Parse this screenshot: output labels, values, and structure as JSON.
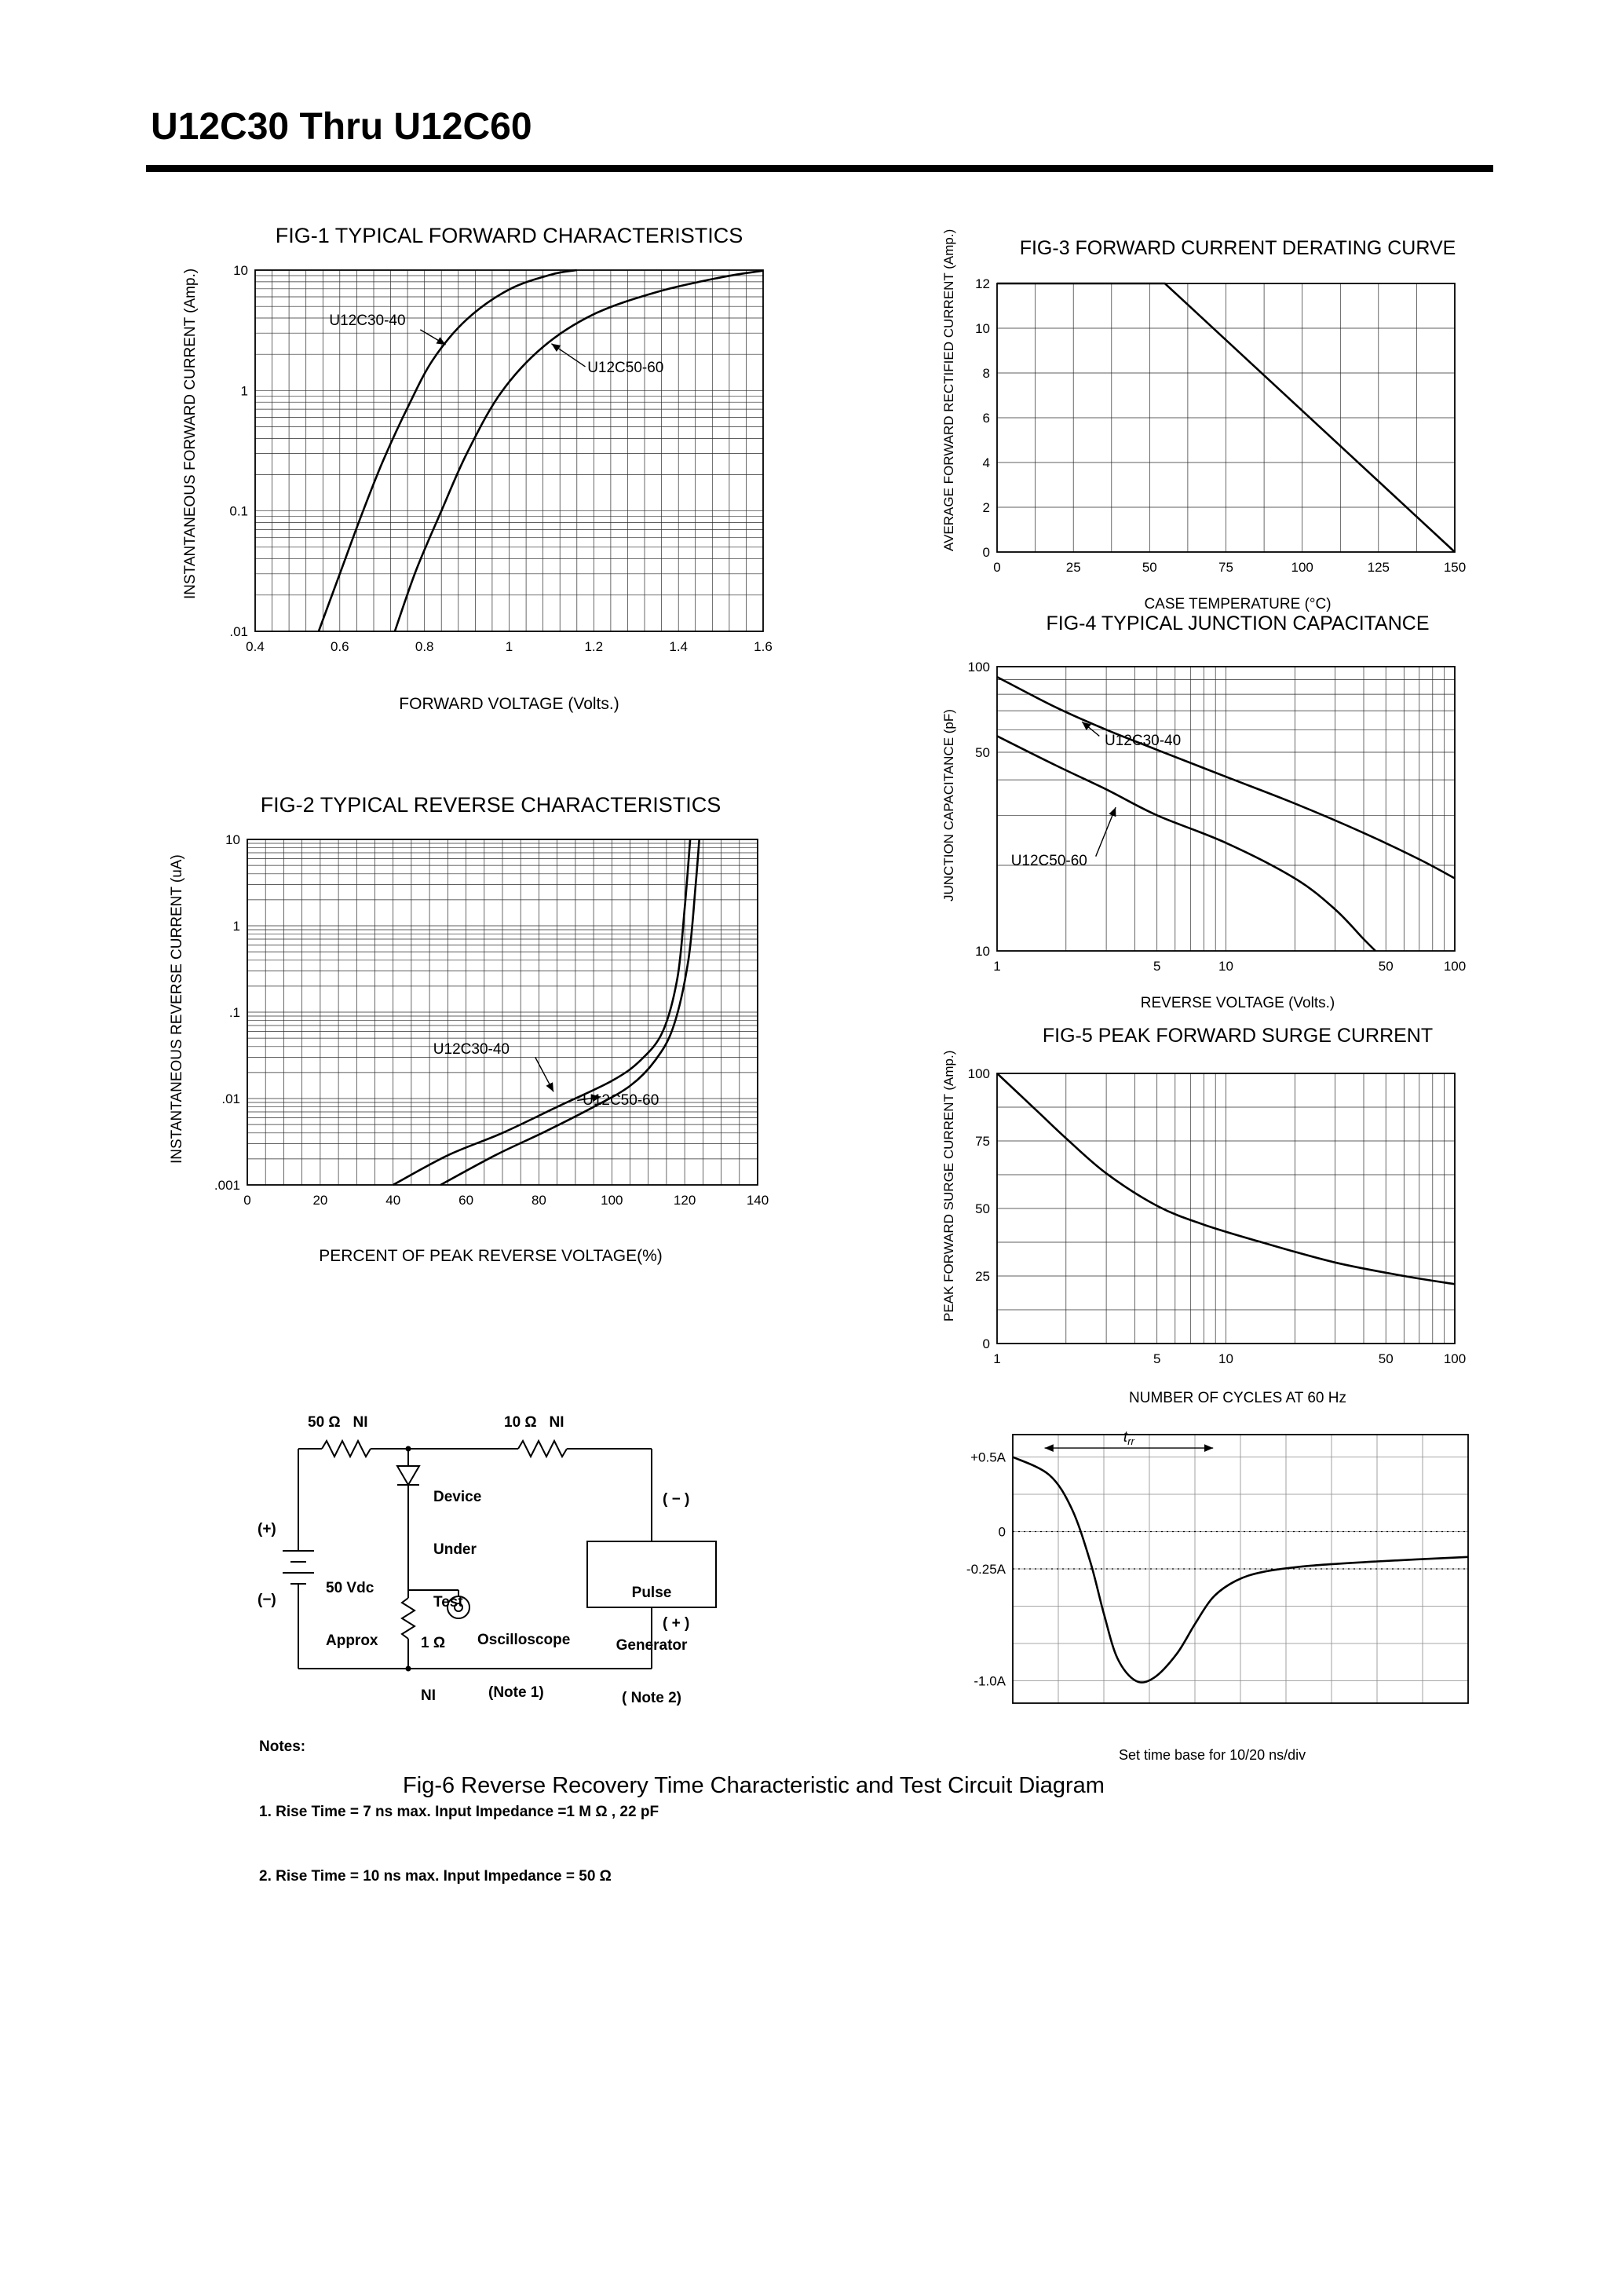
{
  "page": {
    "title": "U12C30 Thru U12C60"
  },
  "fig6": {
    "caption": "Fig-6 Reverse Recovery Time Characteristic and Test Circuit Diagram",
    "timebase": "Set time base for 10/20  ns/div",
    "notes": [
      "Notes:",
      "1. Rise Time = 7 ns max. Input Impedance =1 M Ω , 22 pF",
      "2. Rise Time = 10 ns max. Input Impedance = 50 Ω"
    ],
    "circuit": {
      "r_top_left": "50 Ω   NI",
      "r_top_right": "10 Ω   NI",
      "dut": [
        "Device",
        "Under",
        "Test"
      ],
      "battery_plus": "(+)",
      "battery_minus": "(−)",
      "battery_label": [
        "50 Vdc",
        "Approx"
      ],
      "r_sense": [
        "1 Ω",
        "NI"
      ],
      "scope": [
        "Oscilloscope",
        "(Note 1)"
      ],
      "pulse_gen": [
        "Pulse",
        "Generator",
        "( Note 2)"
      ],
      "pg_minus": "( − )",
      "pg_plus": "( + )"
    }
  },
  "chart_data": [
    {
      "id": "fig1",
      "type": "line",
      "title": "FIG-1 TYPICAL FORWARD CHARACTERISTICS",
      "xlabel": "FORWARD VOLTAGE (Volts.)",
      "ylabel": "INSTANTANEOUS FORWARD CURRENT (Amp.)",
      "m": {
        "l": 75,
        "t": 14,
        "r": 18,
        "b": 46
      },
      "x": {
        "type": "linear",
        "min": 0.4,
        "max": 1.6,
        "step": 0.04,
        "ticks": [
          [
            0.4,
            "0.4"
          ],
          [
            0.6,
            "0.6"
          ],
          [
            0.8,
            "0.8"
          ],
          [
            1,
            "1"
          ],
          [
            1.2,
            "1.2"
          ],
          [
            1.4,
            "1.4"
          ],
          [
            1.6,
            "1.6"
          ]
        ]
      },
      "y": {
        "type": "log",
        "min": 0.01,
        "max": 10,
        "ticks": [
          [
            10,
            "10"
          ],
          [
            1,
            "1"
          ],
          [
            0.1,
            "0.1"
          ],
          [
            0.01,
            ".01"
          ]
        ]
      },
      "series": [
        {
          "name": "U12C30-40",
          "points": [
            [
              0.55,
              0.01
            ],
            [
              0.6,
              0.03
            ],
            [
              0.65,
              0.09
            ],
            [
              0.7,
              0.25
            ],
            [
              0.76,
              0.72
            ],
            [
              0.82,
              1.8
            ],
            [
              0.9,
              3.9
            ],
            [
              1.0,
              6.9
            ],
            [
              1.1,
              9.2
            ],
            [
              1.16,
              10
            ]
          ]
        },
        {
          "name": "U12C50-60",
          "points": [
            [
              0.73,
              0.01
            ],
            [
              0.78,
              0.032
            ],
            [
              0.84,
              0.1
            ],
            [
              0.9,
              0.3
            ],
            [
              0.98,
              0.95
            ],
            [
              1.08,
              2.3
            ],
            [
              1.2,
              4.3
            ],
            [
              1.35,
              6.6
            ],
            [
              1.5,
              8.7
            ],
            [
              1.6,
              9.9
            ]
          ]
        }
      ],
      "annotations": [
        {
          "label": "U12C30-40",
          "text_at": [
            0.575,
            3.5
          ],
          "anchor": "start",
          "line": [
            [
              0.79,
              3.2
            ],
            [
              0.85,
              2.4
            ]
          ]
        },
        {
          "label": "U12C50-60",
          "text_at": [
            1.185,
            1.42
          ],
          "anchor": "start",
          "line": [
            [
              1.18,
              1.58
            ],
            [
              1.1,
              2.45
            ]
          ]
        }
      ]
    },
    {
      "id": "fig2",
      "type": "line",
      "title": "FIG-2 TYPICAL REVERSE CHARACTERISTICS",
      "xlabel": "PERCENT OF PEAK REVERSE VOLTAGE(%)",
      "ylabel": "INSTANTANEOUS REVERSE CURRENT (uA)",
      "m": {
        "l": 80,
        "t": 14,
        "r": 30,
        "b": 46
      },
      "x": {
        "type": "linear",
        "min": 0,
        "max": 140,
        "step": 5,
        "ticks": [
          [
            0,
            "0"
          ],
          [
            20,
            "20"
          ],
          [
            40,
            "40"
          ],
          [
            60,
            "60"
          ],
          [
            80,
            "80"
          ],
          [
            100,
            "100"
          ],
          [
            120,
            "120"
          ],
          [
            140,
            "140"
          ]
        ]
      },
      "y": {
        "type": "log",
        "min": 0.001,
        "max": 10,
        "ticks": [
          [
            10,
            "10"
          ],
          [
            1,
            "1"
          ],
          [
            0.1,
            ".1"
          ],
          [
            0.01,
            ".01"
          ],
          [
            0.001,
            ".001"
          ]
        ]
      },
      "series": [
        {
          "name": "U12C30-40",
          "points": [
            [
              40,
              0.001
            ],
            [
              55,
              0.0022
            ],
            [
              70,
              0.004
            ],
            [
              85,
              0.008
            ],
            [
              100,
              0.016
            ],
            [
              108,
              0.028
            ],
            [
              114,
              0.06
            ],
            [
              118,
              0.25
            ],
            [
              120,
              1.6
            ],
            [
              121.5,
              10
            ]
          ]
        },
        {
          "name": "U12C50-60",
          "points": [
            [
              53,
              0.001
            ],
            [
              68,
              0.0022
            ],
            [
              82,
              0.0042
            ],
            [
              95,
              0.008
            ],
            [
              105,
              0.014
            ],
            [
              112,
              0.028
            ],
            [
              117,
              0.07
            ],
            [
              121,
              0.4
            ],
            [
              123,
              3
            ],
            [
              124,
              10
            ]
          ]
        }
      ],
      "annotations": [
        {
          "label": "U12C30-40",
          "text_at": [
            51,
            0.033
          ],
          "anchor": "start",
          "line": [
            [
              79,
              0.03
            ],
            [
              84,
              0.012
            ]
          ]
        },
        {
          "label": "U12C50-60",
          "text_at": [
            92,
            0.0085
          ],
          "anchor": "start",
          "line": [
            [
              90.5,
              0.0095
            ],
            [
              97,
              0.0105
            ]
          ]
        }
      ]
    },
    {
      "id": "fig3",
      "type": "line",
      "title": "FIG-3 FORWARD CURRENT DERATING CURVE",
      "xlabel": "CASE TEMPERATURE (°C)",
      "ylabel": "AVERAGE FORWARD RECTIFIED CURRENT (Amp.)",
      "m": {
        "l": 55,
        "t": 14,
        "r": 22,
        "b": 44
      },
      "smooth": false,
      "x": {
        "type": "linear",
        "min": 0,
        "max": 150,
        "step": 12.5,
        "ticks": [
          [
            0,
            "0"
          ],
          [
            25,
            "25"
          ],
          [
            50,
            "50"
          ],
          [
            75,
            "75"
          ],
          [
            100,
            "100"
          ],
          [
            125,
            "125"
          ],
          [
            150,
            "150"
          ]
        ]
      },
      "y": {
        "type": "linear",
        "min": 0,
        "max": 12,
        "step": 2,
        "ticks": [
          [
            12,
            "12"
          ],
          [
            10,
            "10"
          ],
          [
            8,
            "8"
          ],
          [
            6,
            "6"
          ],
          [
            4,
            "4"
          ],
          [
            2,
            "2"
          ],
          [
            0,
            "0"
          ]
        ]
      },
      "series": [
        {
          "name": "derating",
          "points": [
            [
              0,
              12
            ],
            [
              55,
              12
            ],
            [
              150,
              0
            ]
          ]
        }
      ]
    },
    {
      "id": "fig4",
      "type": "line",
      "title": "FIG-4 TYPICAL JUNCTION CAPACITANCE",
      "xlabel": "REVERSE VOLTAGE (Volts.)",
      "ylabel": "JUNCTION CAPACITANCE (pF)",
      "m": {
        "l": 55,
        "t": 14,
        "r": 22,
        "b": 44
      },
      "x": {
        "type": "log",
        "min": 1,
        "max": 100,
        "ticks": [
          [
            1,
            "1"
          ],
          [
            5,
            "5"
          ],
          [
            10,
            "10"
          ],
          [
            50,
            "50"
          ],
          [
            100,
            "100"
          ]
        ]
      },
      "y": {
        "type": "log",
        "min": 10,
        "max": 100,
        "ticks": [
          [
            100,
            "100"
          ],
          [
            50,
            "50"
          ],
          [
            10,
            "10"
          ]
        ]
      },
      "series": [
        {
          "name": "U12C30-40",
          "points": [
            [
              1,
              92
            ],
            [
              1.8,
              72
            ],
            [
              3,
              60
            ],
            [
              5,
              51
            ],
            [
              10,
              41
            ],
            [
              20,
              33
            ],
            [
              40,
              26
            ],
            [
              70,
              21
            ],
            [
              100,
              18
            ]
          ]
        },
        {
          "name": "U12C50-60",
          "points": [
            [
              1,
              57
            ],
            [
              1.8,
              45
            ],
            [
              3,
              37
            ],
            [
              5,
              30
            ],
            [
              10,
              24
            ],
            [
              20,
              18
            ],
            [
              30,
              14
            ],
            [
              40,
              11
            ],
            [
              45,
              10
            ]
          ]
        }
      ],
      "annotations": [
        {
          "label": "U12C30-40",
          "text_at": [
            2.95,
            53
          ],
          "anchor": "start",
          "line": [
            [
              2.8,
              57
            ],
            [
              2.35,
              64
            ]
          ]
        },
        {
          "label": "U12C50-60",
          "text_at": [
            1.15,
            20
          ],
          "anchor": "start",
          "line": [
            [
              2.7,
              21.5
            ],
            [
              3.3,
              32
            ]
          ]
        }
      ]
    },
    {
      "id": "fig5",
      "type": "line",
      "title": "FIG-5 PEAK FORWARD SURGE CURRENT",
      "xlabel": "NUMBER OF CYCLES AT 60 Hz",
      "ylabel": "PEAK FORWARD SURGE CURRENT (Amp.)",
      "m": {
        "l": 55,
        "t": 12,
        "r": 22,
        "b": 44
      },
      "x": {
        "type": "log",
        "min": 1,
        "max": 100,
        "ticks": [
          [
            1,
            "1"
          ],
          [
            5,
            "5"
          ],
          [
            10,
            "10"
          ],
          [
            50,
            "50"
          ],
          [
            100,
            "100"
          ]
        ]
      },
      "y": {
        "type": "linear",
        "min": 0,
        "max": 100,
        "step": 12.5,
        "ticks": [
          [
            100,
            "100"
          ],
          [
            75,
            "75"
          ],
          [
            50,
            "50"
          ],
          [
            25,
            "25"
          ],
          [
            0,
            "0"
          ]
        ]
      },
      "series": [
        {
          "name": "surge",
          "points": [
            [
              1,
              100
            ],
            [
              1.5,
              86
            ],
            [
              2,
              76
            ],
            [
              3,
              63
            ],
            [
              5,
              51
            ],
            [
              8,
              44
            ],
            [
              15,
              37
            ],
            [
              30,
              30
            ],
            [
              60,
              25
            ],
            [
              100,
              22
            ]
          ]
        }
      ]
    },
    {
      "id": "fig6wave",
      "type": "line",
      "title": "",
      "xlabel": "",
      "ylabel": "",
      "m": {
        "l": 85,
        "t": 12,
        "r": 15,
        "b": 16
      },
      "light_grid": true,
      "x": {
        "type": "linear",
        "min": 0,
        "max": 10,
        "step": 1,
        "ticks": []
      },
      "y": {
        "type": "linear",
        "min": -1.15,
        "max": 0.65,
        "step": 0.25,
        "ticks": [
          [
            0.5,
            "+0.5A"
          ],
          [
            0,
            "0"
          ],
          [
            -0.25,
            "-0.25A"
          ],
          [
            -1,
            "-1.0A"
          ]
        ]
      },
      "series": [
        {
          "name": "reverse-recovery-current",
          "points": [
            [
              0,
              0.5
            ],
            [
              0.8,
              0.38
            ],
            [
              1.3,
              0.15
            ],
            [
              1.7,
              -0.2
            ],
            [
              2.0,
              -0.55
            ],
            [
              2.3,
              -0.85
            ],
            [
              2.7,
              -1.0
            ],
            [
              3.1,
              -0.98
            ],
            [
              3.6,
              -0.82
            ],
            [
              4.0,
              -0.62
            ],
            [
              4.4,
              -0.44
            ],
            [
              4.9,
              -0.33
            ],
            [
              5.5,
              -0.27
            ],
            [
              6.5,
              -0.23
            ],
            [
              8,
              -0.2
            ],
            [
              10,
              -0.17
            ]
          ]
        }
      ],
      "dashed_y": [
        0,
        -0.25
      ],
      "arrow": {
        "x1": 0.7,
        "x2": 4.4,
        "y": 0.56,
        "label": "t",
        "sub": "rr"
      }
    }
  ]
}
